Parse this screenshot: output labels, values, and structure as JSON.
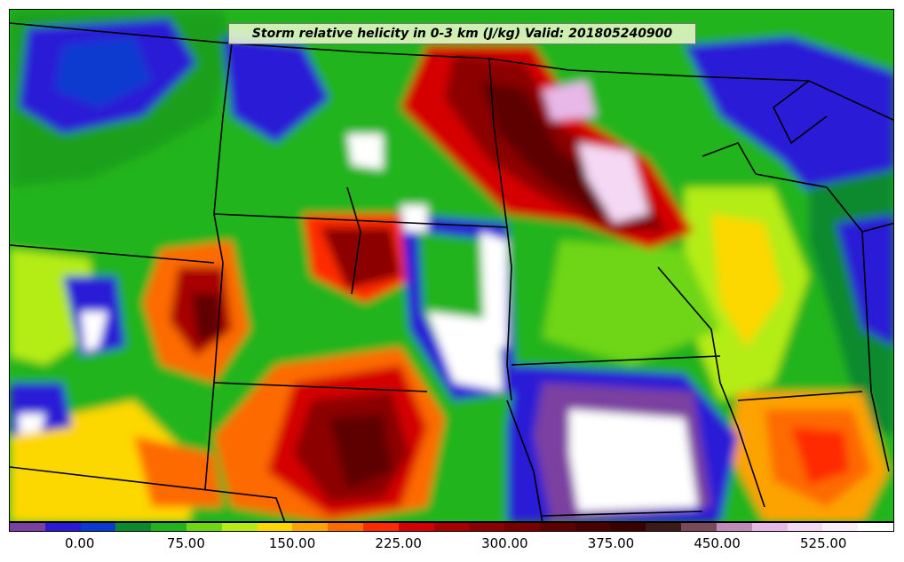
{
  "title": "Storm relative helicity in 0-3 km (J/kg) Valid: 201805240900",
  "colorbar": {
    "colors": [
      "#7b3fa0",
      "#2a1ad6",
      "#0a3ad0",
      "#0d8a2e",
      "#22b41e",
      "#6ed613",
      "#b4ec14",
      "#fdd700",
      "#fca300",
      "#fd6a00",
      "#ff2a00",
      "#d40000",
      "#a80000",
      "#8c0000",
      "#760000",
      "#5e0000",
      "#4a0000",
      "#3a0000",
      "#3d1a1a",
      "#7a4a5a",
      "#bf8ab8",
      "#e8b8e8",
      "#f4d8f4",
      "#fbeefb",
      "#ffffff"
    ],
    "tick_labels": [
      "0.00",
      "75.00",
      "150.00",
      "225.00",
      "300.00",
      "375.00",
      "450.00",
      "525.00"
    ]
  }
}
